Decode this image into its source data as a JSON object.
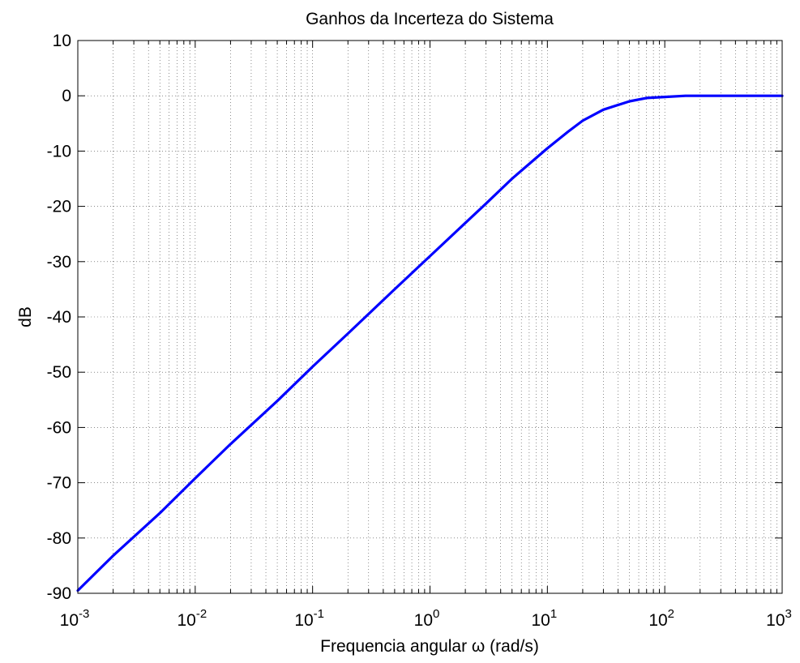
{
  "chart_data": {
    "type": "line",
    "title": "Ganhos da Incerteza do Sistema",
    "xlabel": "Frequencia angular ω (rad/s)",
    "ylabel": "dB",
    "xscale": "log",
    "xlim": [
      0.001,
      1000
    ],
    "ylim": [
      -90,
      10
    ],
    "grid": true,
    "x_ticks": [
      {
        "base": "10",
        "exp": "-3"
      },
      {
        "base": "10",
        "exp": "-2"
      },
      {
        "base": "10",
        "exp": "-1"
      },
      {
        "base": "10",
        "exp": "0"
      },
      {
        "base": "10",
        "exp": "1"
      },
      {
        "base": "10",
        "exp": "2"
      },
      {
        "base": "10",
        "exp": "3"
      }
    ],
    "y_ticks": [
      "10",
      "0",
      "-10",
      "-20",
      "-30",
      "-40",
      "-50",
      "-60",
      "-70",
      "-80",
      "-90"
    ],
    "series": [
      {
        "color": "#0000ff",
        "x": [
          0.001,
          0.002,
          0.005,
          0.01,
          0.02,
          0.05,
          0.1,
          0.2,
          0.5,
          1,
          2,
          3,
          5,
          10,
          15,
          20,
          30,
          50,
          70,
          100,
          150,
          200,
          500,
          1000
        ],
        "y": [
          -89.5,
          -83.2,
          -75.5,
          -69.2,
          -63.0,
          -55.2,
          -49.0,
          -43.0,
          -35.0,
          -29.0,
          -23.0,
          -19.5,
          -15.0,
          -9.5,
          -6.5,
          -4.5,
          -2.5,
          -1.0,
          -0.4,
          -0.2,
          0,
          0,
          0,
          0
        ]
      }
    ]
  }
}
